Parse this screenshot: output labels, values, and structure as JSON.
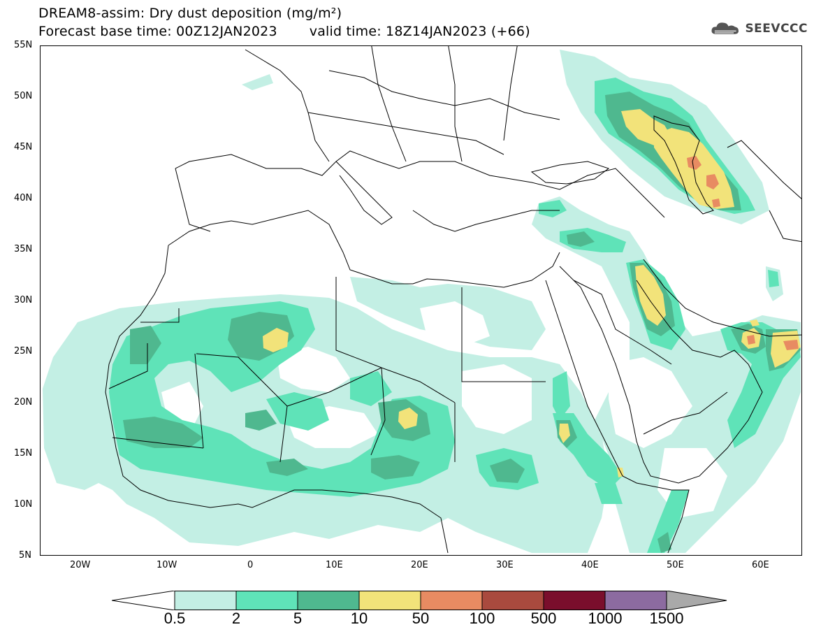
{
  "title": {
    "line1": "DREAM8-assim: Dry dust deposition (mg/m²)",
    "base_time": "Forecast base time: 00Z12JAN2023",
    "valid_time": "valid time: 18Z14JAN2023 (+66)"
  },
  "logo": {
    "text": "SEEVCCC",
    "icon": "cloud-icon"
  },
  "axes": {
    "lat_labels": [
      "55N",
      "50N",
      "45N",
      "40N",
      "35N",
      "30N",
      "25N",
      "20N",
      "15N",
      "10N",
      "5N"
    ],
    "lon_labels": [
      "20W",
      "10W",
      "0",
      "10E",
      "20E",
      "30E",
      "40E",
      "50E",
      "60E"
    ]
  },
  "colorbar": {
    "labels": [
      "0.5",
      "2",
      "5",
      "10",
      "50",
      "100",
      "500",
      "1000",
      "1500"
    ],
    "colors": [
      "#c3efe4",
      "#5fe3b8",
      "#4fb88f",
      "#f2e37a",
      "#e88b62",
      "#a94a3e",
      "#7a0e2c",
      "#8c6ba0",
      "#a9a9a9"
    ]
  },
  "legend_colors": {
    "c1": "#c3efe4",
    "c2": "#5fe3b8",
    "c3": "#4fb88f",
    "c4": "#f2e37a",
    "c5": "#e88b62"
  }
}
